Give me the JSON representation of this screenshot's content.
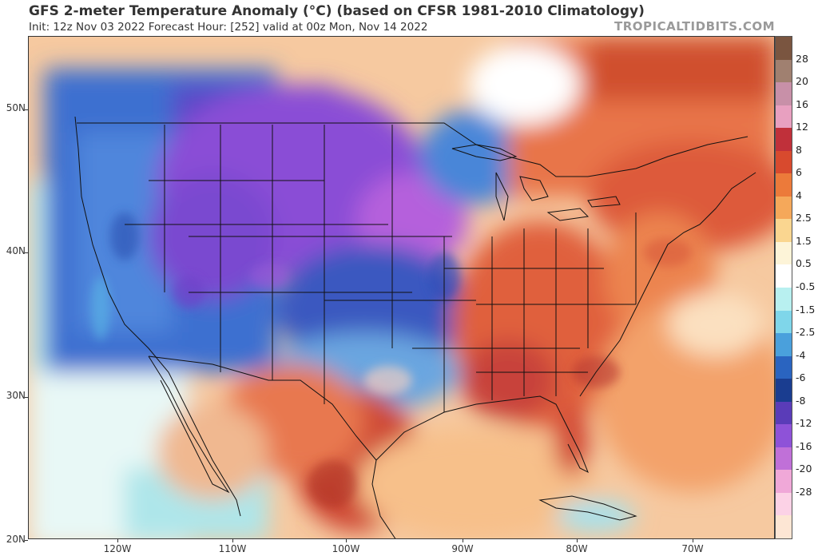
{
  "header": {
    "title": "GFS 2-meter Temperature Anomaly (°C) (based on CFSR 1981-2010 Climatology)",
    "subtitle": "Init: 12z Nov 03 2022   Forecast Hour: [252]   valid at 00z Mon, Nov 14 2022",
    "watermark": "TROPICALTIDBITS.COM"
  },
  "axes": {
    "lat_labels": [
      "50N",
      "40N",
      "30N",
      "20N"
    ],
    "lon_labels": [
      "120W",
      "110W",
      "100W",
      "90W",
      "80W",
      "70W"
    ]
  },
  "colorbar": {
    "labels": [
      "28",
      "20",
      "16",
      "12",
      "8",
      "6",
      "4",
      "2.5",
      "1.5",
      "0.5",
      "-0.5",
      "-1.5",
      "-2.5",
      "-4",
      "-6",
      "-8",
      "-12",
      "-16",
      "-20",
      "-28"
    ],
    "colors": [
      "#7a5540",
      "#a08070",
      "#c890a8",
      "#e8a0c0",
      "#c0303a",
      "#d84a2e",
      "#ec7a3a",
      "#f5a85a",
      "#fad690",
      "#fdf4d8",
      "#ffffff",
      "#b8f0f0",
      "#7fd6ea",
      "#4aa0dc",
      "#2a64c0",
      "#1a3d90",
      "#5a3cb8",
      "#8e52d8",
      "#c070d8",
      "#f0a8d8",
      "#fcd2e6",
      "#fde6d4"
    ]
  }
}
